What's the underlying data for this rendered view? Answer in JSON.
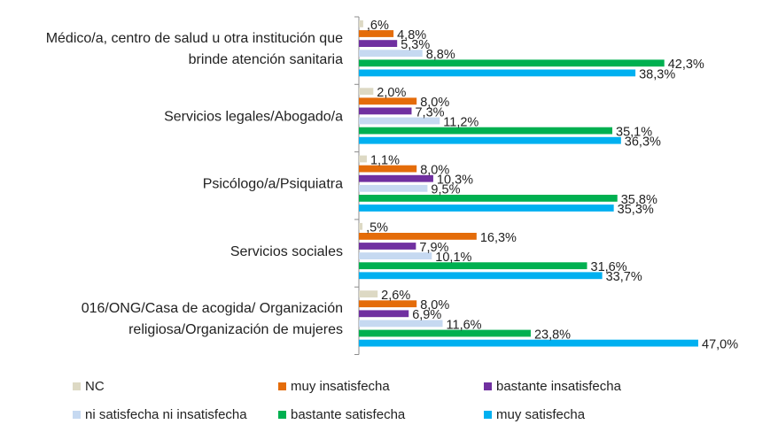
{
  "chart_data": {
    "type": "bar",
    "orientation": "horizontal",
    "categories": [
      "Médico/a, centro de salud u otra institución que brinde atención sanitaria",
      "Servicios legales/Abogado/a",
      "Psicólogo/a/Psiquiatra",
      "Servicios sociales",
      "016/ONG/Casa de acogida/ Organización religiosa/Organización de mujeres"
    ],
    "category_lines": [
      [
        "Médico/a, centro de salud u otra institución que",
        "brinde atención sanitaria"
      ],
      [
        "Servicios legales/Abogado/a"
      ],
      [
        "Psicólogo/a/Psiquiatra"
      ],
      [
        "Servicios sociales"
      ],
      [
        "016/ONG/Casa de acogida/ Organización",
        "religiosa/Organización de mujeres"
      ]
    ],
    "series": [
      {
        "name": "NC",
        "color": "#DDD9C4",
        "values": [
          0.6,
          2.0,
          1.1,
          0.5,
          2.6
        ],
        "labels": [
          ",6%",
          "2,0%",
          "1,1%",
          ",5%",
          "2,6%"
        ]
      },
      {
        "name": "muy insatisfecha",
        "color": "#E46C0A",
        "values": [
          4.8,
          8.0,
          8.0,
          16.3,
          8.0
        ],
        "labels": [
          "4,8%",
          "8,0%",
          "8,0%",
          "16,3%",
          "8,0%"
        ]
      },
      {
        "name": "bastante insatisfecha",
        "color": "#7030A0",
        "values": [
          5.3,
          7.3,
          10.3,
          7.9,
          6.9
        ],
        "labels": [
          "5,3%",
          "7,3%",
          "10,3%",
          "7,9%",
          "6,9%"
        ]
      },
      {
        "name": "ni satisfecha ni insatisfecha",
        "color": "#C6D9F1",
        "values": [
          8.8,
          11.2,
          9.5,
          10.1,
          11.6
        ],
        "labels": [
          "8,8%",
          "11,2%",
          "9,5%",
          "10,1%",
          "11,6%"
        ]
      },
      {
        "name": "bastante satisfecha",
        "color": "#00B050",
        "values": [
          42.3,
          35.1,
          35.8,
          31.6,
          23.8
        ],
        "labels": [
          "42,3%",
          "35,1%",
          "35,8%",
          "31,6%",
          "23,8%"
        ]
      },
      {
        "name": "muy satisfecha",
        "color": "#00B0F0",
        "values": [
          38.3,
          36.3,
          35.3,
          33.7,
          47.0
        ],
        "labels": [
          "38,3%",
          "36,3%",
          "35,3%",
          "33,7%",
          "47,0%"
        ]
      }
    ],
    "xlim": [
      0,
      50
    ],
    "legend": "bottom",
    "grid": false
  }
}
